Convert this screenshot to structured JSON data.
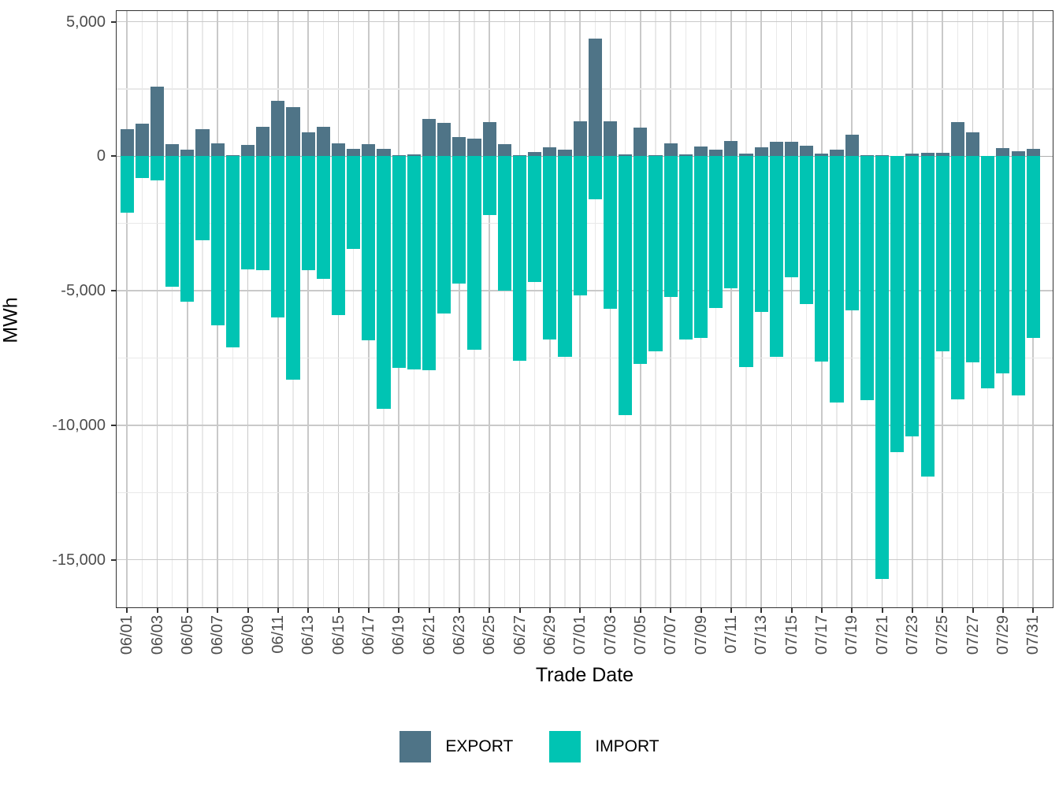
{
  "figure": {
    "y_axis_title": "MWh",
    "x_axis_title": "Trade Date",
    "colors": {
      "export": "#4f7487",
      "import": "#00c4b3",
      "panel_border": "#333333",
      "grid_major": "#c9c9c9",
      "grid_minor": "#e9e9e9",
      "zero_line": "#b0b0b0",
      "tick_text": "#4d4d4d"
    }
  },
  "chart_data": {
    "type": "bar",
    "title": "",
    "xlabel": "Trade Date",
    "ylabel": "MWh",
    "legend_position": "bottom",
    "grid": true,
    "ylim": [
      -16760,
      5395
    ],
    "y_ticks": [
      {
        "value": 5000,
        "label": "5,000"
      },
      {
        "value": 0,
        "label": "0"
      },
      {
        "value": -5000,
        "label": "-5,000"
      },
      {
        "value": -10000,
        "label": "-10,000"
      },
      {
        "value": -15000,
        "label": "-15,000"
      }
    ],
    "y_minor_ticks": [
      2500,
      -2500,
      -7500,
      -12500
    ],
    "x": [
      "06/01",
      "06/02",
      "06/03",
      "06/04",
      "06/05",
      "06/06",
      "06/07",
      "06/08",
      "06/09",
      "06/10",
      "06/11",
      "06/12",
      "06/13",
      "06/14",
      "06/15",
      "06/16",
      "06/17",
      "06/18",
      "06/19",
      "06/20",
      "06/21",
      "06/22",
      "06/23",
      "06/24",
      "06/25",
      "06/26",
      "06/27",
      "06/28",
      "06/29",
      "06/30",
      "07/01",
      "07/02",
      "07/03",
      "07/04",
      "07/05",
      "07/06",
      "07/07",
      "07/08",
      "07/09",
      "07/10",
      "07/11",
      "07/12",
      "07/13",
      "07/14",
      "07/15",
      "07/16",
      "07/17",
      "07/18",
      "07/19",
      "07/20",
      "07/21",
      "07/22",
      "07/23",
      "07/24",
      "07/25",
      "07/26",
      "07/27",
      "07/28",
      "07/29",
      "07/30",
      "07/31"
    ],
    "x_tick_every": 2,
    "series": [
      {
        "name": "EXPORT",
        "color": "#4f7487",
        "values": [
          1000,
          1200,
          2600,
          450,
          250,
          1000,
          480,
          50,
          420,
          1090,
          2050,
          1820,
          890,
          1090,
          480,
          260,
          460,
          260,
          40,
          80,
          1400,
          1240,
          700,
          660,
          1280,
          460,
          30,
          150,
          320,
          250,
          1290,
          4380,
          1290,
          60,
          1070,
          30,
          480,
          60,
          350,
          240,
          570,
          110,
          330,
          540,
          550,
          380,
          90,
          230,
          790,
          30,
          30,
          20,
          100,
          130,
          130,
          1270,
          880,
          20,
          290,
          180,
          280
        ]
      },
      {
        "name": "IMPORT",
        "color": "#00c4b3",
        "values": [
          -2100,
          -800,
          -900,
          -4860,
          -5400,
          -3130,
          -6280,
          -7120,
          -4200,
          -4240,
          -6000,
          -8300,
          -4240,
          -4550,
          -5900,
          -3440,
          -6830,
          -9400,
          -7870,
          -7940,
          -7950,
          -5860,
          -4740,
          -7200,
          -2190,
          -5010,
          -7600,
          -4690,
          -6810,
          -7450,
          -5160,
          -1590,
          -5670,
          -9610,
          -7730,
          -7260,
          -5220,
          -6810,
          -6750,
          -5650,
          -4900,
          -7840,
          -5790,
          -7470,
          -4500,
          -5510,
          -7630,
          -9160,
          -5720,
          -9060,
          -15700,
          -11000,
          -10400,
          -11920,
          -7260,
          -9030,
          -7650,
          -8630,
          -8070,
          -8890,
          -6750
        ]
      }
    ]
  }
}
